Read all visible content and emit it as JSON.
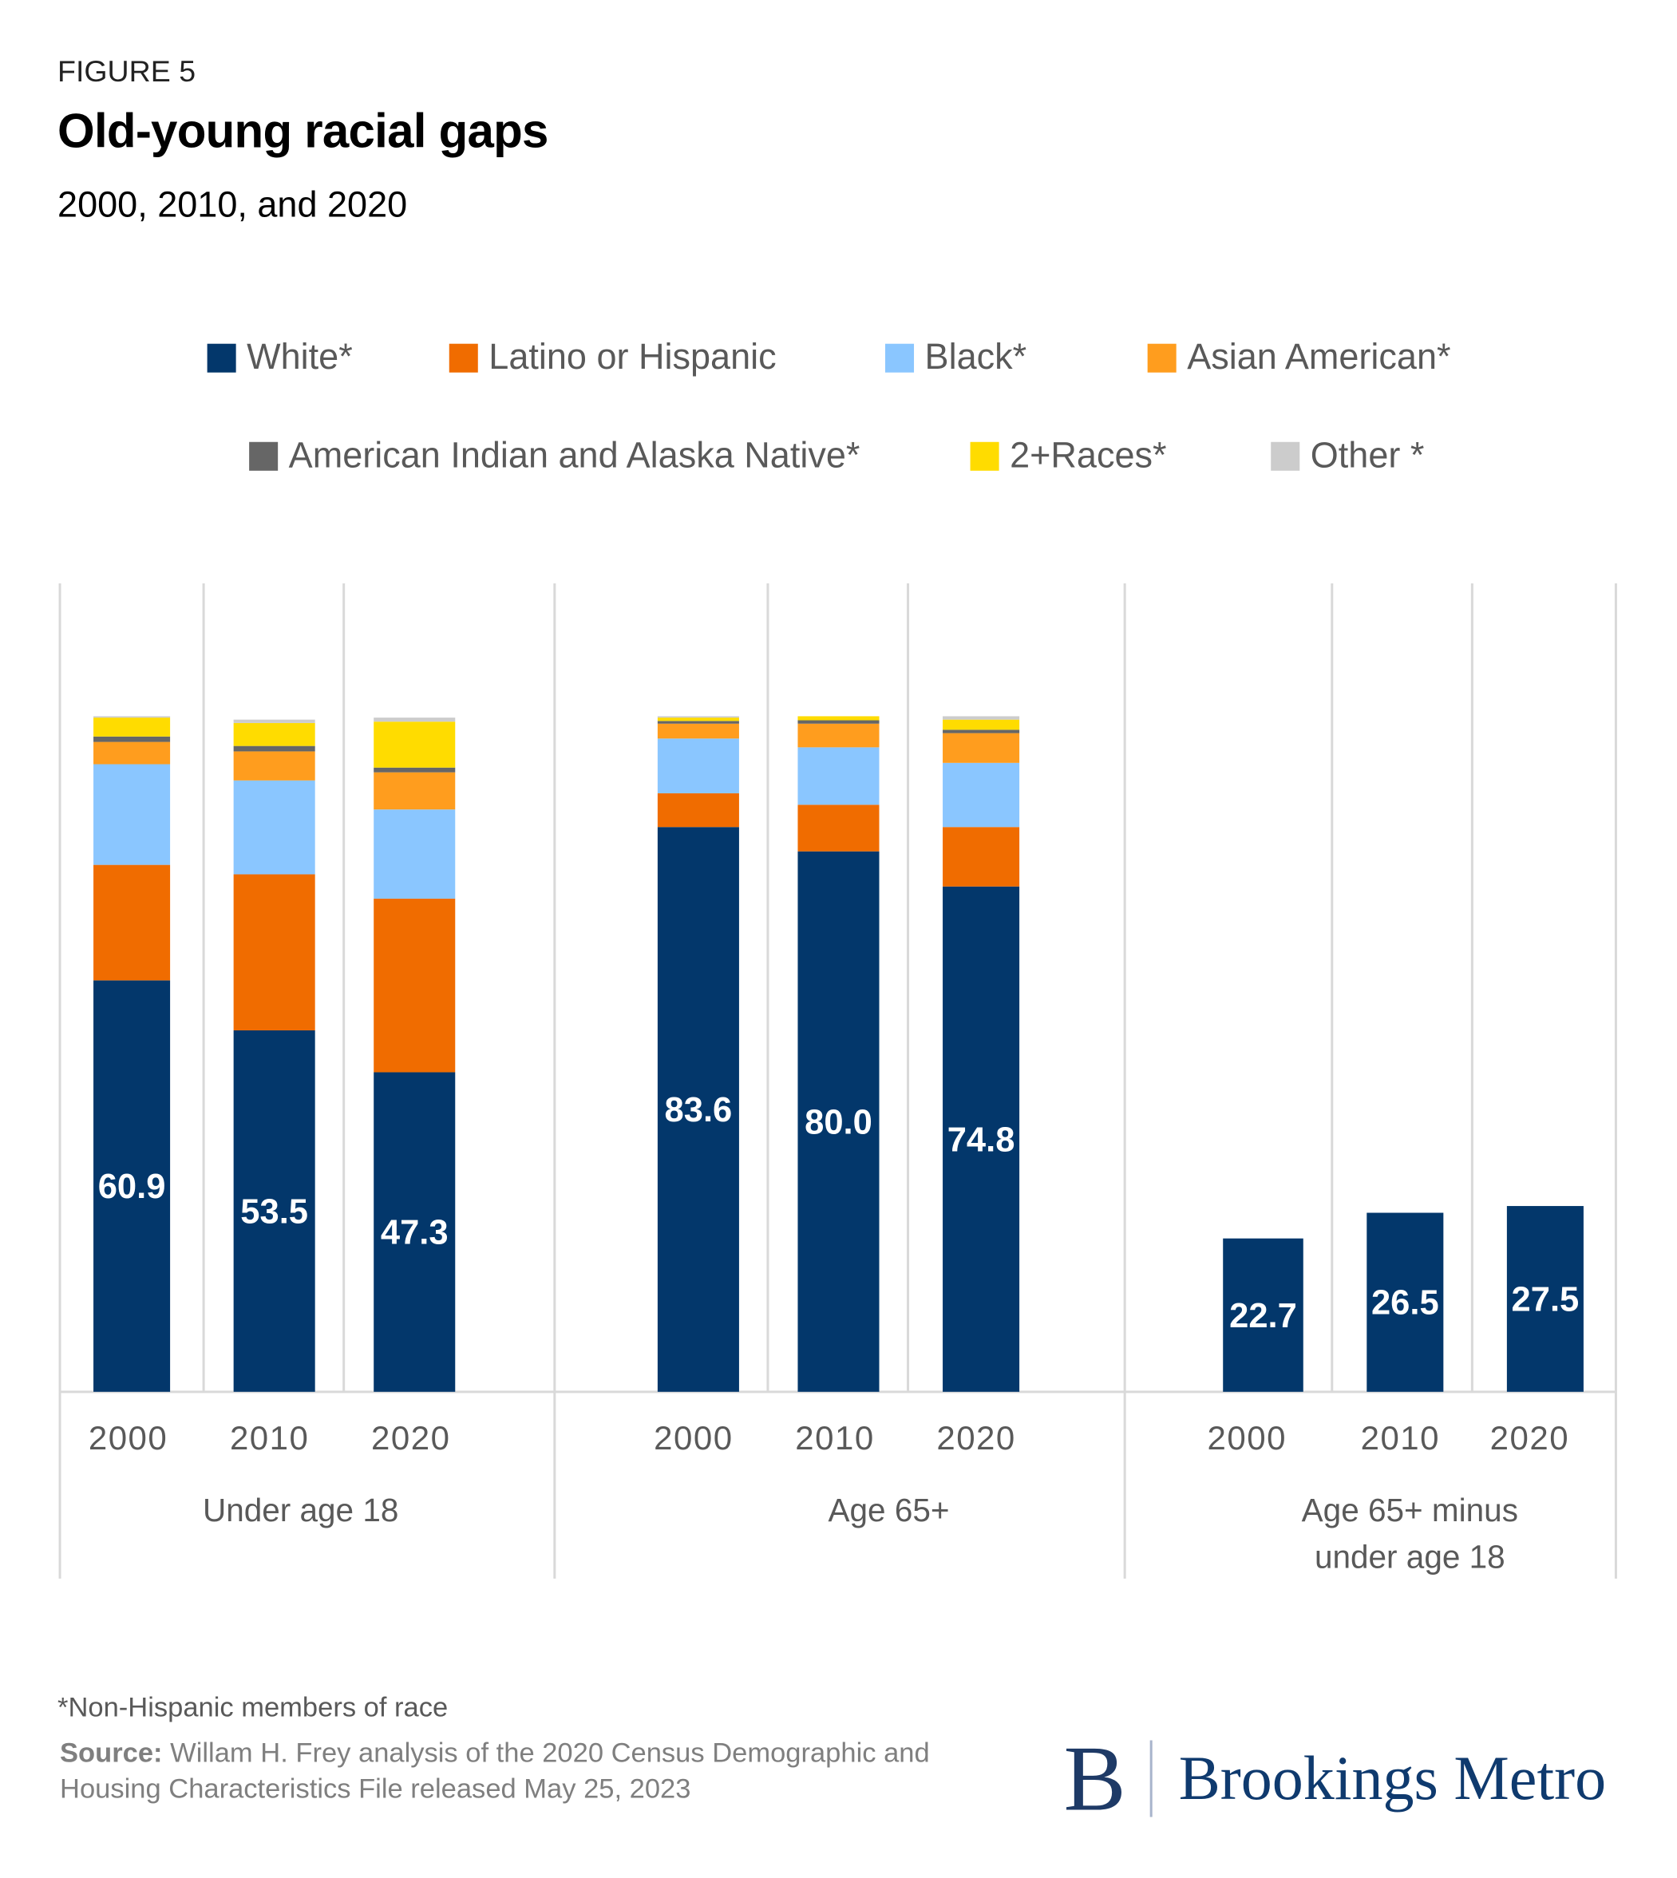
{
  "figure_label": "FIGURE 5",
  "title": "Old-young racial gaps",
  "subtitle": "2000, 2010, and 2020",
  "footnote": "*Non-Hispanic members of race",
  "source_label": "Source:",
  "source_text": "Willam H. Frey analysis of the 2020 Census Demographic and Housing Characteristics File released May 25, 2023",
  "logo": {
    "letter": "B",
    "name": "Brookings Metro"
  },
  "chart_data": {
    "type": "stacked-bar",
    "title": "Old-young racial gaps",
    "subtitle": "2000, 2010, and 2020",
    "unit": "percent",
    "ylim": [
      0,
      100
    ],
    "grid": "vertical separators only",
    "legend_position": "top",
    "legend": [
      {
        "name": "White*",
        "color": "#03376b"
      },
      {
        "name": "Latino or Hispanic",
        "color": "#f06c00"
      },
      {
        "name": "Black*",
        "color": "#8ac6ff"
      },
      {
        "name": "Asian American*",
        "color": "#ff9d1e"
      },
      {
        "name": "American Indian and Alaska Native*",
        "color": "#666666"
      },
      {
        "name": "2+Races*",
        "color": "#ffdc00"
      },
      {
        "name": "Other *",
        "color": "#cccccc"
      }
    ],
    "groups": [
      {
        "label": "Under age 18",
        "categories": [
          "2000",
          "2010",
          "2020"
        ],
        "stacks": [
          [
            60.9,
            17.1,
            14.9,
            3.3,
            0.8,
            2.8,
            0.2
          ],
          [
            53.5,
            23.1,
            13.9,
            4.3,
            0.8,
            3.4,
            0.5
          ],
          [
            47.3,
            25.7,
            13.2,
            5.5,
            0.7,
            6.8,
            0.6
          ]
        ],
        "labels": [
          "60.9",
          "53.5",
          "47.3"
        ]
      },
      {
        "label": "Age 65+",
        "categories": [
          "2000",
          "2010",
          "2020"
        ],
        "stacks": [
          [
            83.6,
            5.0,
            8.1,
            2.2,
            0.4,
            0.5,
            0.2
          ],
          [
            80.0,
            6.9,
            8.5,
            3.5,
            0.5,
            0.6,
            0.0
          ],
          [
            74.8,
            8.8,
            9.5,
            4.4,
            0.5,
            1.5,
            0.5
          ]
        ],
        "labels": [
          "83.6",
          "80.0",
          "74.8"
        ]
      },
      {
        "label": "Age 65+ minus under age 18",
        "categories": [
          "2000",
          "2010",
          "2020"
        ],
        "stacks": [
          [
            22.7
          ],
          [
            26.5
          ],
          [
            27.5
          ]
        ],
        "labels": [
          "22.7",
          "26.5",
          "27.5"
        ]
      }
    ]
  }
}
